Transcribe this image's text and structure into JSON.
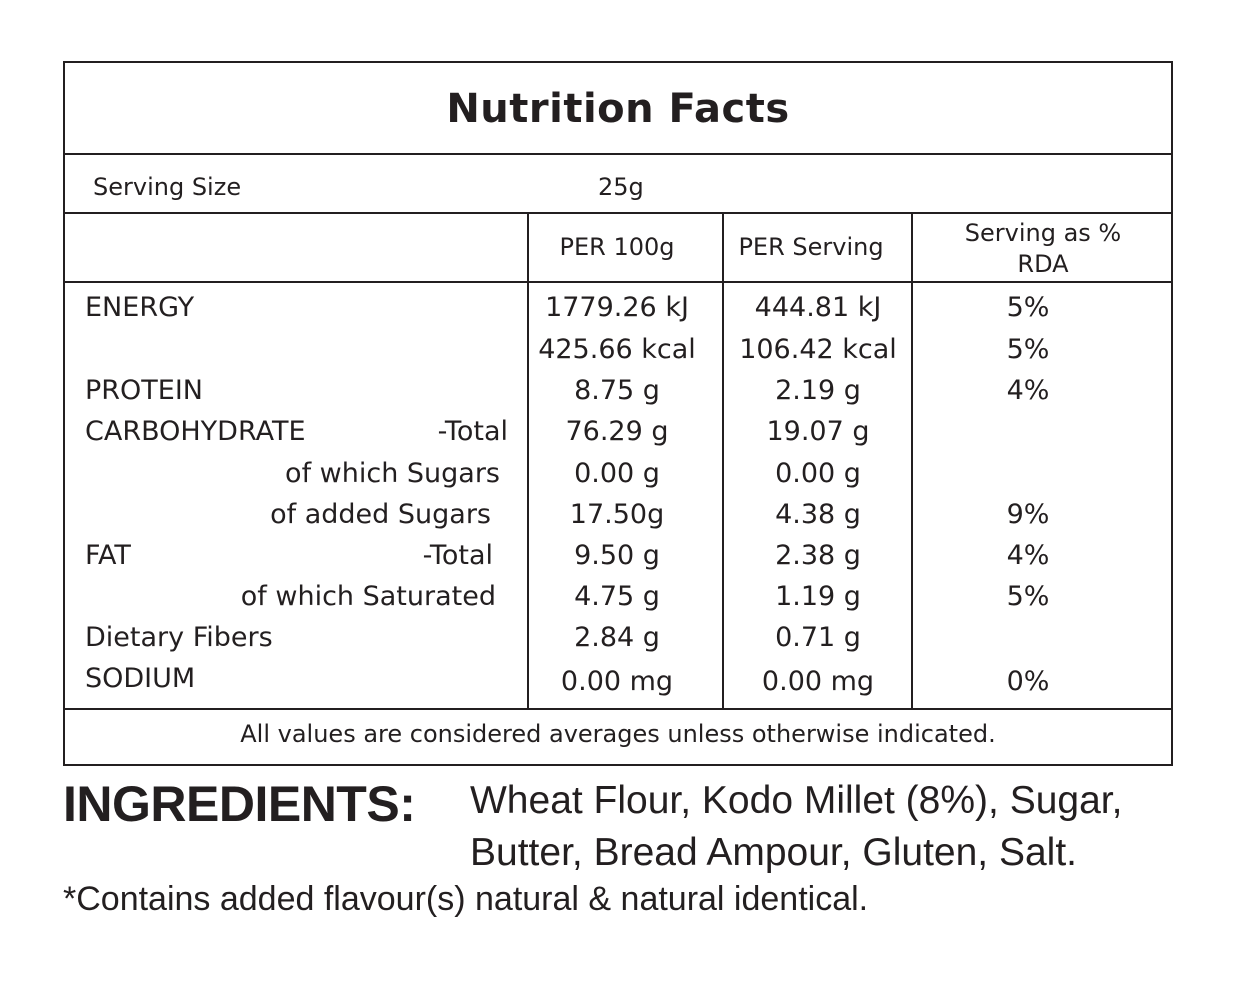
{
  "title": "Nutrition Facts",
  "serving_size": {
    "label": "Serving Size",
    "value": "25g"
  },
  "columns": [
    "PER 100g",
    "PER Serving",
    "Serving as %",
    "RDA"
  ],
  "rows": [
    {
      "label": "ENERGY",
      "qualifier": "",
      "per100": "1779.26 kJ",
      "perServing": "444.81 kJ",
      "rda": "5%"
    },
    {
      "label": "",
      "qualifier": "",
      "per100": "425.66 kcal",
      "perServing": "106.42 kcal",
      "rda": "5%"
    },
    {
      "label": "PROTEIN",
      "qualifier": "",
      "per100": "8.75 g",
      "perServing": "2.19 g",
      "rda": "4%"
    },
    {
      "label": "CARBOHYDRATE",
      "qualifier": "-Total",
      "per100": "76.29 g",
      "perServing": "19.07 g",
      "rda": ""
    },
    {
      "label": "",
      "qualifier": "of which Sugars",
      "per100": "0.00 g",
      "perServing": "0.00 g",
      "rda": ""
    },
    {
      "label": "",
      "qualifier": "of added Sugars",
      "per100": "17.50g",
      "perServing": "4.38 g",
      "rda": "9%"
    },
    {
      "label": "FAT",
      "qualifier": "-Total",
      "per100": "9.50 g",
      "perServing": "2.38 g",
      "rda": "4%"
    },
    {
      "label": "",
      "qualifier": "of which Saturated",
      "per100": "4.75 g",
      "perServing": "1.19 g",
      "rda": "5%"
    },
    {
      "label": "Dietary Fibers",
      "qualifier": "",
      "per100": "2.84 g",
      "perServing": "0.71 g",
      "rda": ""
    },
    {
      "label": "SODIUM",
      "qualifier": "",
      "per100": "0.00 mg",
      "perServing": "0.00 mg",
      "rda": "0%"
    }
  ],
  "footnote": "All values are considered averages unless otherwise indicated.",
  "ingredients": {
    "heading": "INGREDIENTS:",
    "line1": "Wheat Flour, Kodo Millet (8%), Sugar,",
    "line2": "Butter, Bread Ampour, Gluten, Salt."
  },
  "disclaimer": "*Contains added flavour(s) natural & natural identical."
}
